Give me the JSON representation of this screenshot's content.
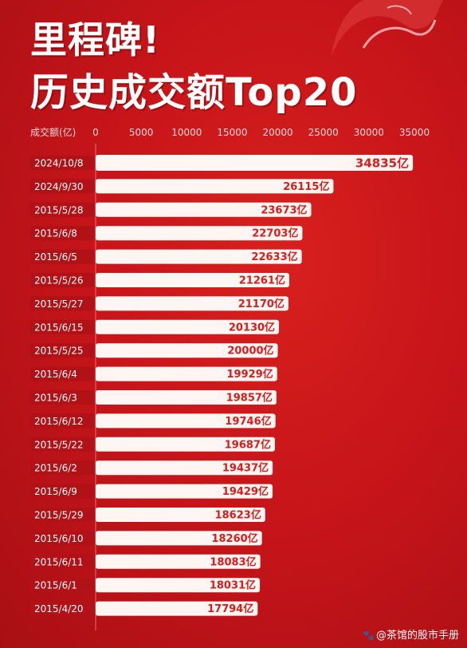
{
  "header": {
    "title_line1": "里程碑!",
    "title_line2": "历史成交额Top20"
  },
  "watermark": {
    "icon": "paw-icon",
    "text": "@茶馆的股市手册"
  },
  "colors": {
    "background": "#c8151a",
    "bar": "#fff5f2",
    "value_text": "#d81c1c",
    "category_bg": "#b01218"
  },
  "chart_data": {
    "type": "bar",
    "orientation": "horizontal",
    "title": "历史成交额Top20",
    "xlabel": "成交额(亿)",
    "ylabel": "",
    "xlim": [
      0,
      35000
    ],
    "x_ticks": [
      0,
      5000,
      10000,
      15000,
      20000,
      25000,
      30000,
      35000
    ],
    "value_suffix": "亿",
    "grid": false,
    "legend": "none",
    "categories": [
      "2024/10/8",
      "2024/9/30",
      "2015/5/28",
      "2015/6/8",
      "2015/6/5",
      "2015/5/26",
      "2015/5/27",
      "2015/6/15",
      "2015/5/25",
      "2015/6/4",
      "2015/6/3",
      "2015/6/12",
      "2015/5/22",
      "2015/6/2",
      "2015/6/9",
      "2015/5/29",
      "2015/6/10",
      "2015/6/11",
      "2015/6/1",
      "2015/4/20"
    ],
    "values": [
      34835,
      26115,
      23673,
      22703,
      22633,
      21261,
      21170,
      20130,
      20000,
      19929,
      19857,
      19746,
      19687,
      19437,
      19429,
      18623,
      18260,
      18083,
      18031,
      17794
    ]
  }
}
